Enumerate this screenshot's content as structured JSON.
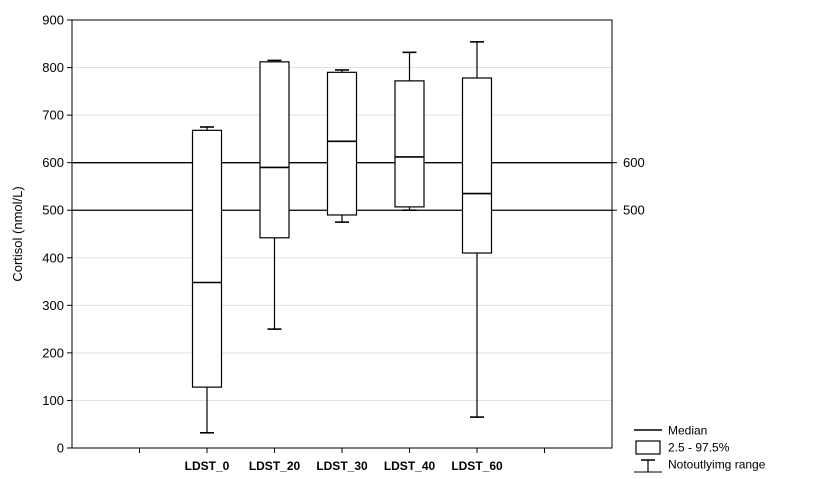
{
  "chart_data": {
    "type": "box",
    "ylabel": "Cortisol (nmol/L)",
    "ylim": [
      0,
      900
    ],
    "yticks": [
      0,
      100,
      200,
      300,
      400,
      500,
      600,
      700,
      800,
      900
    ],
    "grid": "horizontal-light",
    "categories": [
      "LDST_0",
      "LDST_20",
      "LDST_30",
      "LDST_40",
      "LDST_60"
    ],
    "boxes": [
      {
        "category": "LDST_0",
        "whisker_low": 32,
        "q_low": 128,
        "median": 348,
        "q_high": 668,
        "whisker_high": 675
      },
      {
        "category": "LDST_20",
        "whisker_low": 250,
        "q_low": 442,
        "median": 590,
        "q_high": 812,
        "whisker_high": 815
      },
      {
        "category": "LDST_30",
        "whisker_low": 475,
        "q_low": 490,
        "median": 645,
        "q_high": 790,
        "whisker_high": 795
      },
      {
        "category": "LDST_40",
        "whisker_low": 500,
        "q_low": 507,
        "median": 612,
        "q_high": 772,
        "whisker_high": 832
      },
      {
        "category": "LDST_60",
        "whisker_low": 65,
        "q_low": 410,
        "median": 535,
        "q_high": 778,
        "whisker_high": 854
      }
    ],
    "reference_lines": [
      {
        "value": 600,
        "label": "600"
      },
      {
        "value": 500,
        "label": "500"
      }
    ],
    "legend": {
      "placement": "bottom-right",
      "items": [
        {
          "symbol": "line",
          "label": "Median"
        },
        {
          "symbol": "box",
          "label": "2.5 - 97.5%"
        },
        {
          "symbol": "whisker",
          "label": "Notoutlyimg range"
        }
      ]
    }
  }
}
